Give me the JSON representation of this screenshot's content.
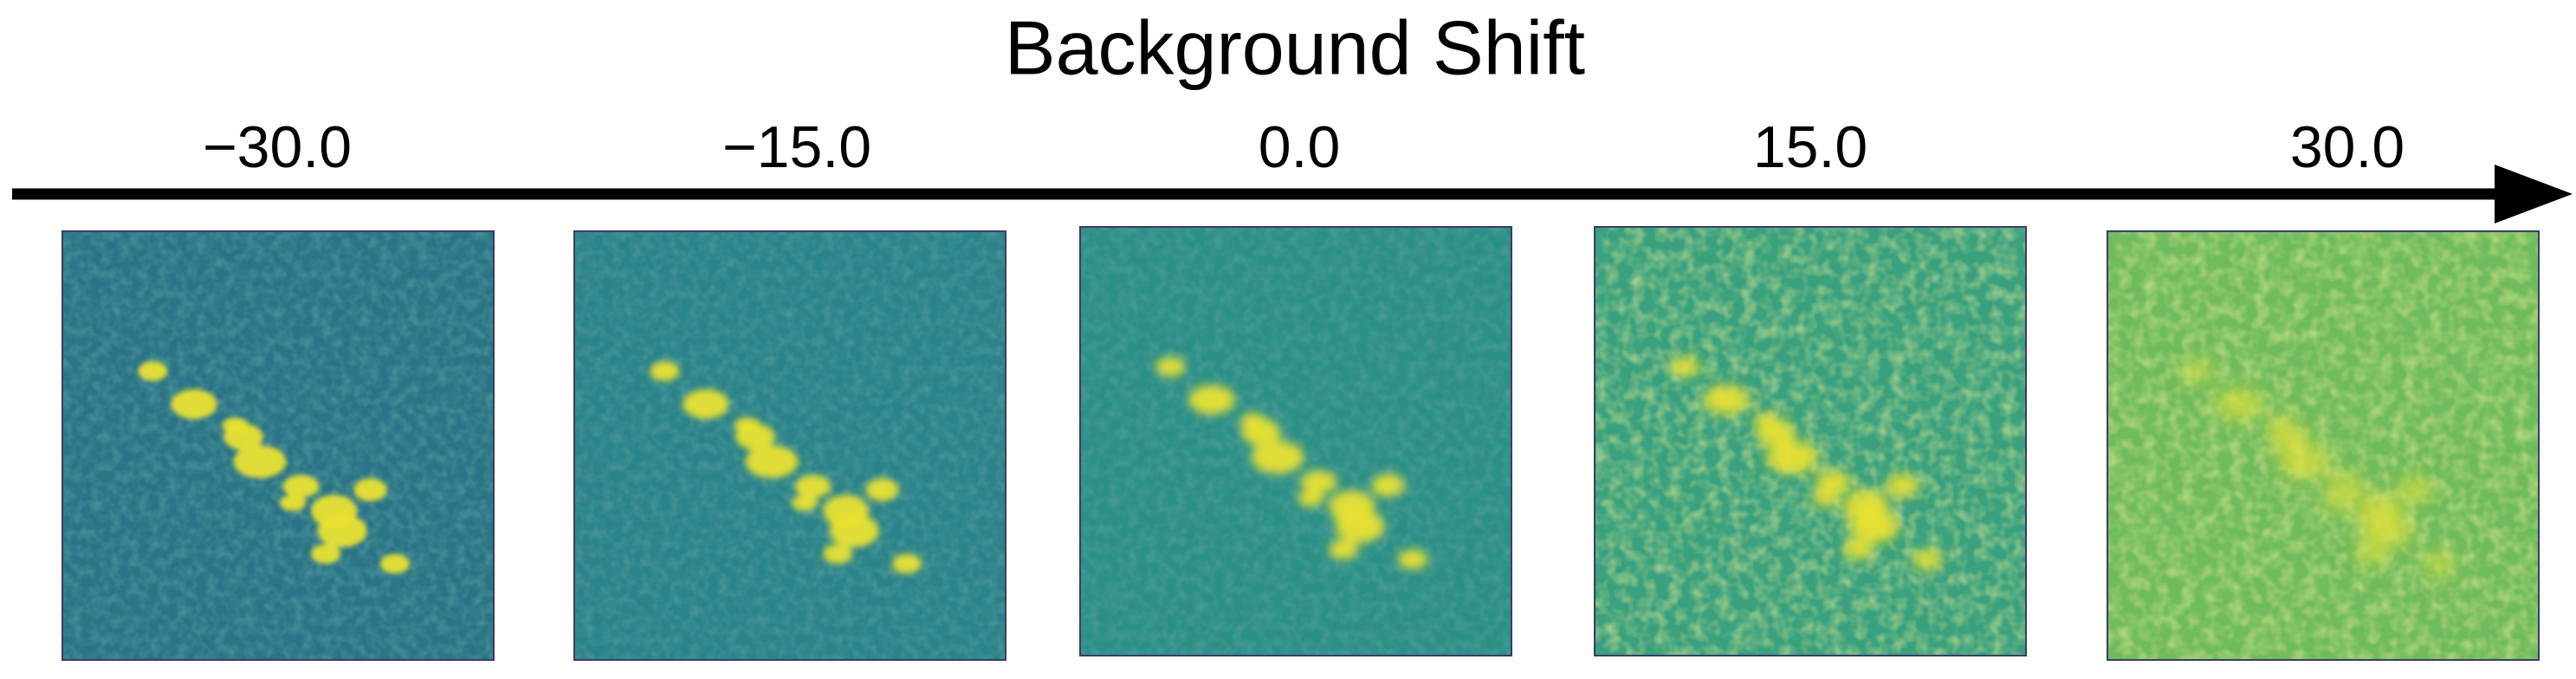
{
  "title": "Background Shift",
  "panels": [
    {
      "label": "−30.0"
    },
    {
      "label": "−15.0"
    },
    {
      "label": "0.0"
    },
    {
      "label": "15.0"
    },
    {
      "label": "30.0"
    }
  ]
}
